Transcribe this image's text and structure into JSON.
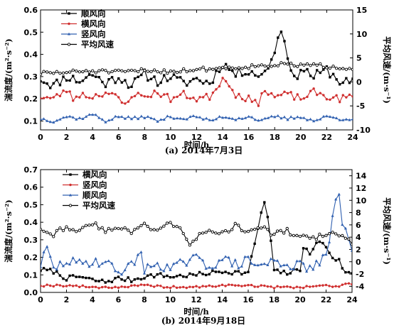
{
  "figure": {
    "captions": [
      "(a) 2014年7月3日",
      "(b) 2014年9月18日"
    ]
  },
  "chart_data": [
    {
      "type": "line",
      "caption": "(a) 2014年7月3日",
      "xlabel": "时间/h",
      "ylabel": "湍流度/(m²·s⁻²)",
      "y2label": "平均风速/(m·s⁻¹)",
      "xlim": [
        0,
        24
      ],
      "xticks": [
        "0",
        "2",
        "4",
        "6",
        "8",
        "10",
        "12",
        "14",
        "16",
        "18",
        "20",
        "22",
        "24"
      ],
      "ylim": [
        0.06,
        0.6
      ],
      "yticks": [
        "0.1",
        "0.2",
        "0.3",
        "0.4",
        "0.5",
        "0.6"
      ],
      "y2lim": [
        -10,
        15
      ],
      "y2ticks": [
        "-10",
        "-5",
        "0",
        "5",
        "10",
        "15"
      ],
      "legend_position": "top-left",
      "series": [
        {
          "name": "顺风向",
          "axis": "left",
          "color": "#000000",
          "marker": "square",
          "keypoints": [
            [
              0,
              0.29
            ],
            [
              1,
              0.26
            ],
            [
              2,
              0.3
            ],
            [
              3,
              0.28
            ],
            [
              4,
              0.31
            ],
            [
              5,
              0.27
            ],
            [
              6,
              0.3
            ],
            [
              7,
              0.26
            ],
            [
              8,
              0.31
            ],
            [
              9,
              0.28
            ],
            [
              10,
              0.3
            ],
            [
              11,
              0.27
            ],
            [
              12,
              0.29
            ],
            [
              13,
              0.27
            ],
            [
              14,
              0.36
            ],
            [
              15,
              0.31
            ],
            [
              16,
              0.33
            ],
            [
              17,
              0.3
            ],
            [
              17.8,
              0.38
            ],
            [
              18.3,
              0.48
            ],
            [
              18.6,
              0.52
            ],
            [
              19,
              0.4
            ],
            [
              19.4,
              0.27
            ],
            [
              20,
              0.34
            ],
            [
              21,
              0.3
            ],
            [
              22,
              0.33
            ],
            [
              23,
              0.28
            ],
            [
              24,
              0.27
            ]
          ]
        },
        {
          "name": "横风向",
          "axis": "left",
          "color": "#d03030",
          "marker": "circle",
          "keypoints": [
            [
              0,
              0.21
            ],
            [
              1,
              0.2
            ],
            [
              2,
              0.24
            ],
            [
              2.5,
              0.2
            ],
            [
              3,
              0.22
            ],
            [
              4,
              0.21
            ],
            [
              5,
              0.23
            ],
            [
              6,
              0.2
            ],
            [
              6.5,
              0.17
            ],
            [
              7,
              0.22
            ],
            [
              8,
              0.21
            ],
            [
              9,
              0.23
            ],
            [
              10,
              0.2
            ],
            [
              11,
              0.22
            ],
            [
              12,
              0.2
            ],
            [
              13,
              0.21
            ],
            [
              14,
              0.29
            ],
            [
              14.5,
              0.27
            ],
            [
              15,
              0.22
            ],
            [
              16,
              0.2
            ],
            [
              16.7,
              0.17
            ],
            [
              17,
              0.24
            ],
            [
              18,
              0.21
            ],
            [
              19,
              0.22
            ],
            [
              20,
              0.2
            ],
            [
              21,
              0.23
            ],
            [
              22,
              0.21
            ],
            [
              23,
              0.2
            ],
            [
              24,
              0.21
            ]
          ]
        },
        {
          "name": "竖风向",
          "axis": "left",
          "color": "#3060b0",
          "marker": "triangle",
          "keypoints": [
            [
              0,
              0.11
            ],
            [
              1,
              0.1
            ],
            [
              2,
              0.12
            ],
            [
              3,
              0.11
            ],
            [
              4,
              0.13
            ],
            [
              5,
              0.1
            ],
            [
              6,
              0.12
            ],
            [
              7,
              0.11
            ],
            [
              8,
              0.12
            ],
            [
              9,
              0.1
            ],
            [
              10,
              0.12
            ],
            [
              11,
              0.11
            ],
            [
              12,
              0.12
            ],
            [
              13,
              0.1
            ],
            [
              14,
              0.12
            ],
            [
              15,
              0.11
            ],
            [
              16,
              0.12
            ],
            [
              17,
              0.1
            ],
            [
              18,
              0.12
            ],
            [
              19,
              0.11
            ],
            [
              20,
              0.12
            ],
            [
              21,
              0.1
            ],
            [
              22,
              0.12
            ],
            [
              23,
              0.11
            ],
            [
              24,
              0.11
            ]
          ]
        },
        {
          "name": "平均风速",
          "axis": "right",
          "color": "#000000",
          "marker": "open-circle",
          "keypoints": [
            [
              0,
              1.8
            ],
            [
              2,
              2.0
            ],
            [
              4,
              2.3
            ],
            [
              6,
              2.0
            ],
            [
              8,
              2.4
            ],
            [
              10,
              2.2
            ],
            [
              12,
              2.6
            ],
            [
              14,
              2.9
            ],
            [
              16,
              3.2
            ],
            [
              18,
              3.6
            ],
            [
              20,
              3.5
            ],
            [
              22,
              3.3
            ],
            [
              24,
              2.9
            ]
          ]
        }
      ]
    },
    {
      "type": "line",
      "caption": "(b) 2014年9月18日",
      "xlabel": "时间/h",
      "ylabel": "湍流度/(m²·s⁻²)",
      "y2label": "平均风速/(m·s⁻¹)",
      "xlim": [
        0,
        24
      ],
      "xticks": [
        "0",
        "2",
        "4",
        "6",
        "8",
        "10",
        "12",
        "14",
        "16",
        "18",
        "20",
        "22",
        "24"
      ],
      "ylim": [
        0,
        0.7
      ],
      "yticks": [
        "0.0",
        "0.1",
        "0.2",
        "0.3",
        "0.4",
        "0.5",
        "0.6",
        "0.7"
      ],
      "y2lim": [
        -5,
        15
      ],
      "y2ticks": [
        "-4",
        "-2",
        "0",
        "2",
        "4",
        "6",
        "8",
        "10",
        "12",
        "14"
      ],
      "legend_position": "top-center",
      "series": [
        {
          "name": "横风向",
          "axis": "left",
          "color": "#000000",
          "marker": "square",
          "keypoints": [
            [
              0,
              0.13
            ],
            [
              1,
              0.12
            ],
            [
              2,
              0.08
            ],
            [
              3,
              0.09
            ],
            [
              4,
              0.07
            ],
            [
              5,
              0.06
            ],
            [
              6,
              0.08
            ],
            [
              7,
              0.07
            ],
            [
              8,
              0.09
            ],
            [
              9,
              0.1
            ],
            [
              10,
              0.09
            ],
            [
              12,
              0.1
            ],
            [
              14,
              0.12
            ],
            [
              16,
              0.11
            ],
            [
              17.2,
              0.52
            ],
            [
              17.6,
              0.4
            ],
            [
              18,
              0.12
            ],
            [
              19,
              0.11
            ],
            [
              20,
              0.13
            ],
            [
              20.3,
              0.29
            ],
            [
              20.8,
              0.2
            ],
            [
              21.3,
              0.3
            ],
            [
              22,
              0.26
            ],
            [
              22.5,
              0.2
            ],
            [
              23,
              0.18
            ],
            [
              23.5,
              0.11
            ],
            [
              24,
              0.11
            ]
          ]
        },
        {
          "name": "竖风向",
          "axis": "left",
          "color": "#d03030",
          "marker": "circle",
          "keypoints": [
            [
              0,
              0.04
            ],
            [
              2,
              0.04
            ],
            [
              4,
              0.03
            ],
            [
              6,
              0.03
            ],
            [
              8,
              0.04
            ],
            [
              10,
              0.03
            ],
            [
              12,
              0.03
            ],
            [
              14,
              0.04
            ],
            [
              16,
              0.04
            ],
            [
              18,
              0.03
            ],
            [
              20,
              0.03
            ],
            [
              22,
              0.04
            ],
            [
              23,
              0.03
            ],
            [
              23.7,
              0.06
            ],
            [
              24,
              0.04
            ]
          ]
        },
        {
          "name": "顺风向",
          "axis": "left",
          "color": "#3060b0",
          "marker": "triangle",
          "keypoints": [
            [
              0,
              0.16
            ],
            [
              0.5,
              0.25
            ],
            [
              1,
              0.13
            ],
            [
              2,
              0.18
            ],
            [
              3,
              0.16
            ],
            [
              4,
              0.18
            ],
            [
              5,
              0.17
            ],
            [
              6,
              0.12
            ],
            [
              7,
              0.15
            ],
            [
              7.7,
              0.25
            ],
            [
              8,
              0.12
            ],
            [
              9,
              0.17
            ],
            [
              10,
              0.13
            ],
            [
              11,
              0.17
            ],
            [
              12,
              0.19
            ],
            [
              13,
              0.15
            ],
            [
              14,
              0.19
            ],
            [
              15,
              0.16
            ],
            [
              16,
              0.18
            ],
            [
              17,
              0.15
            ],
            [
              18,
              0.18
            ],
            [
              19,
              0.16
            ],
            [
              20,
              0.15
            ],
            [
              21,
              0.14
            ],
            [
              22,
              0.2
            ],
            [
              22.6,
              0.45
            ],
            [
              22.9,
              0.65
            ],
            [
              23.2,
              0.38
            ],
            [
              23.6,
              0.33
            ],
            [
              24,
              0.25
            ]
          ]
        },
        {
          "name": "平均风速",
          "axis": "right",
          "color": "#000000",
          "marker": "open-circle",
          "keypoints": [
            [
              0,
              5.5
            ],
            [
              1,
              4.5
            ],
            [
              2,
              5.8
            ],
            [
              3,
              5.0
            ],
            [
              4,
              6.2
            ],
            [
              5,
              5.0
            ],
            [
              6,
              5.8
            ],
            [
              7,
              4.8
            ],
            [
              8,
              6.0
            ],
            [
              9,
              5.2
            ],
            [
              10,
              6.2
            ],
            [
              11,
              5.0
            ],
            [
              11.5,
              3.0
            ],
            [
              12,
              4.0
            ],
            [
              13,
              5.5
            ],
            [
              14,
              4.5
            ],
            [
              15,
              5.8
            ],
            [
              16,
              5.0
            ],
            [
              17,
              5.5
            ],
            [
              18,
              4.5
            ],
            [
              19,
              5.0
            ],
            [
              20,
              4.0
            ],
            [
              21,
              3.8
            ],
            [
              22,
              4.5
            ],
            [
              23,
              4.2
            ],
            [
              24,
              3.2
            ]
          ]
        }
      ]
    }
  ]
}
